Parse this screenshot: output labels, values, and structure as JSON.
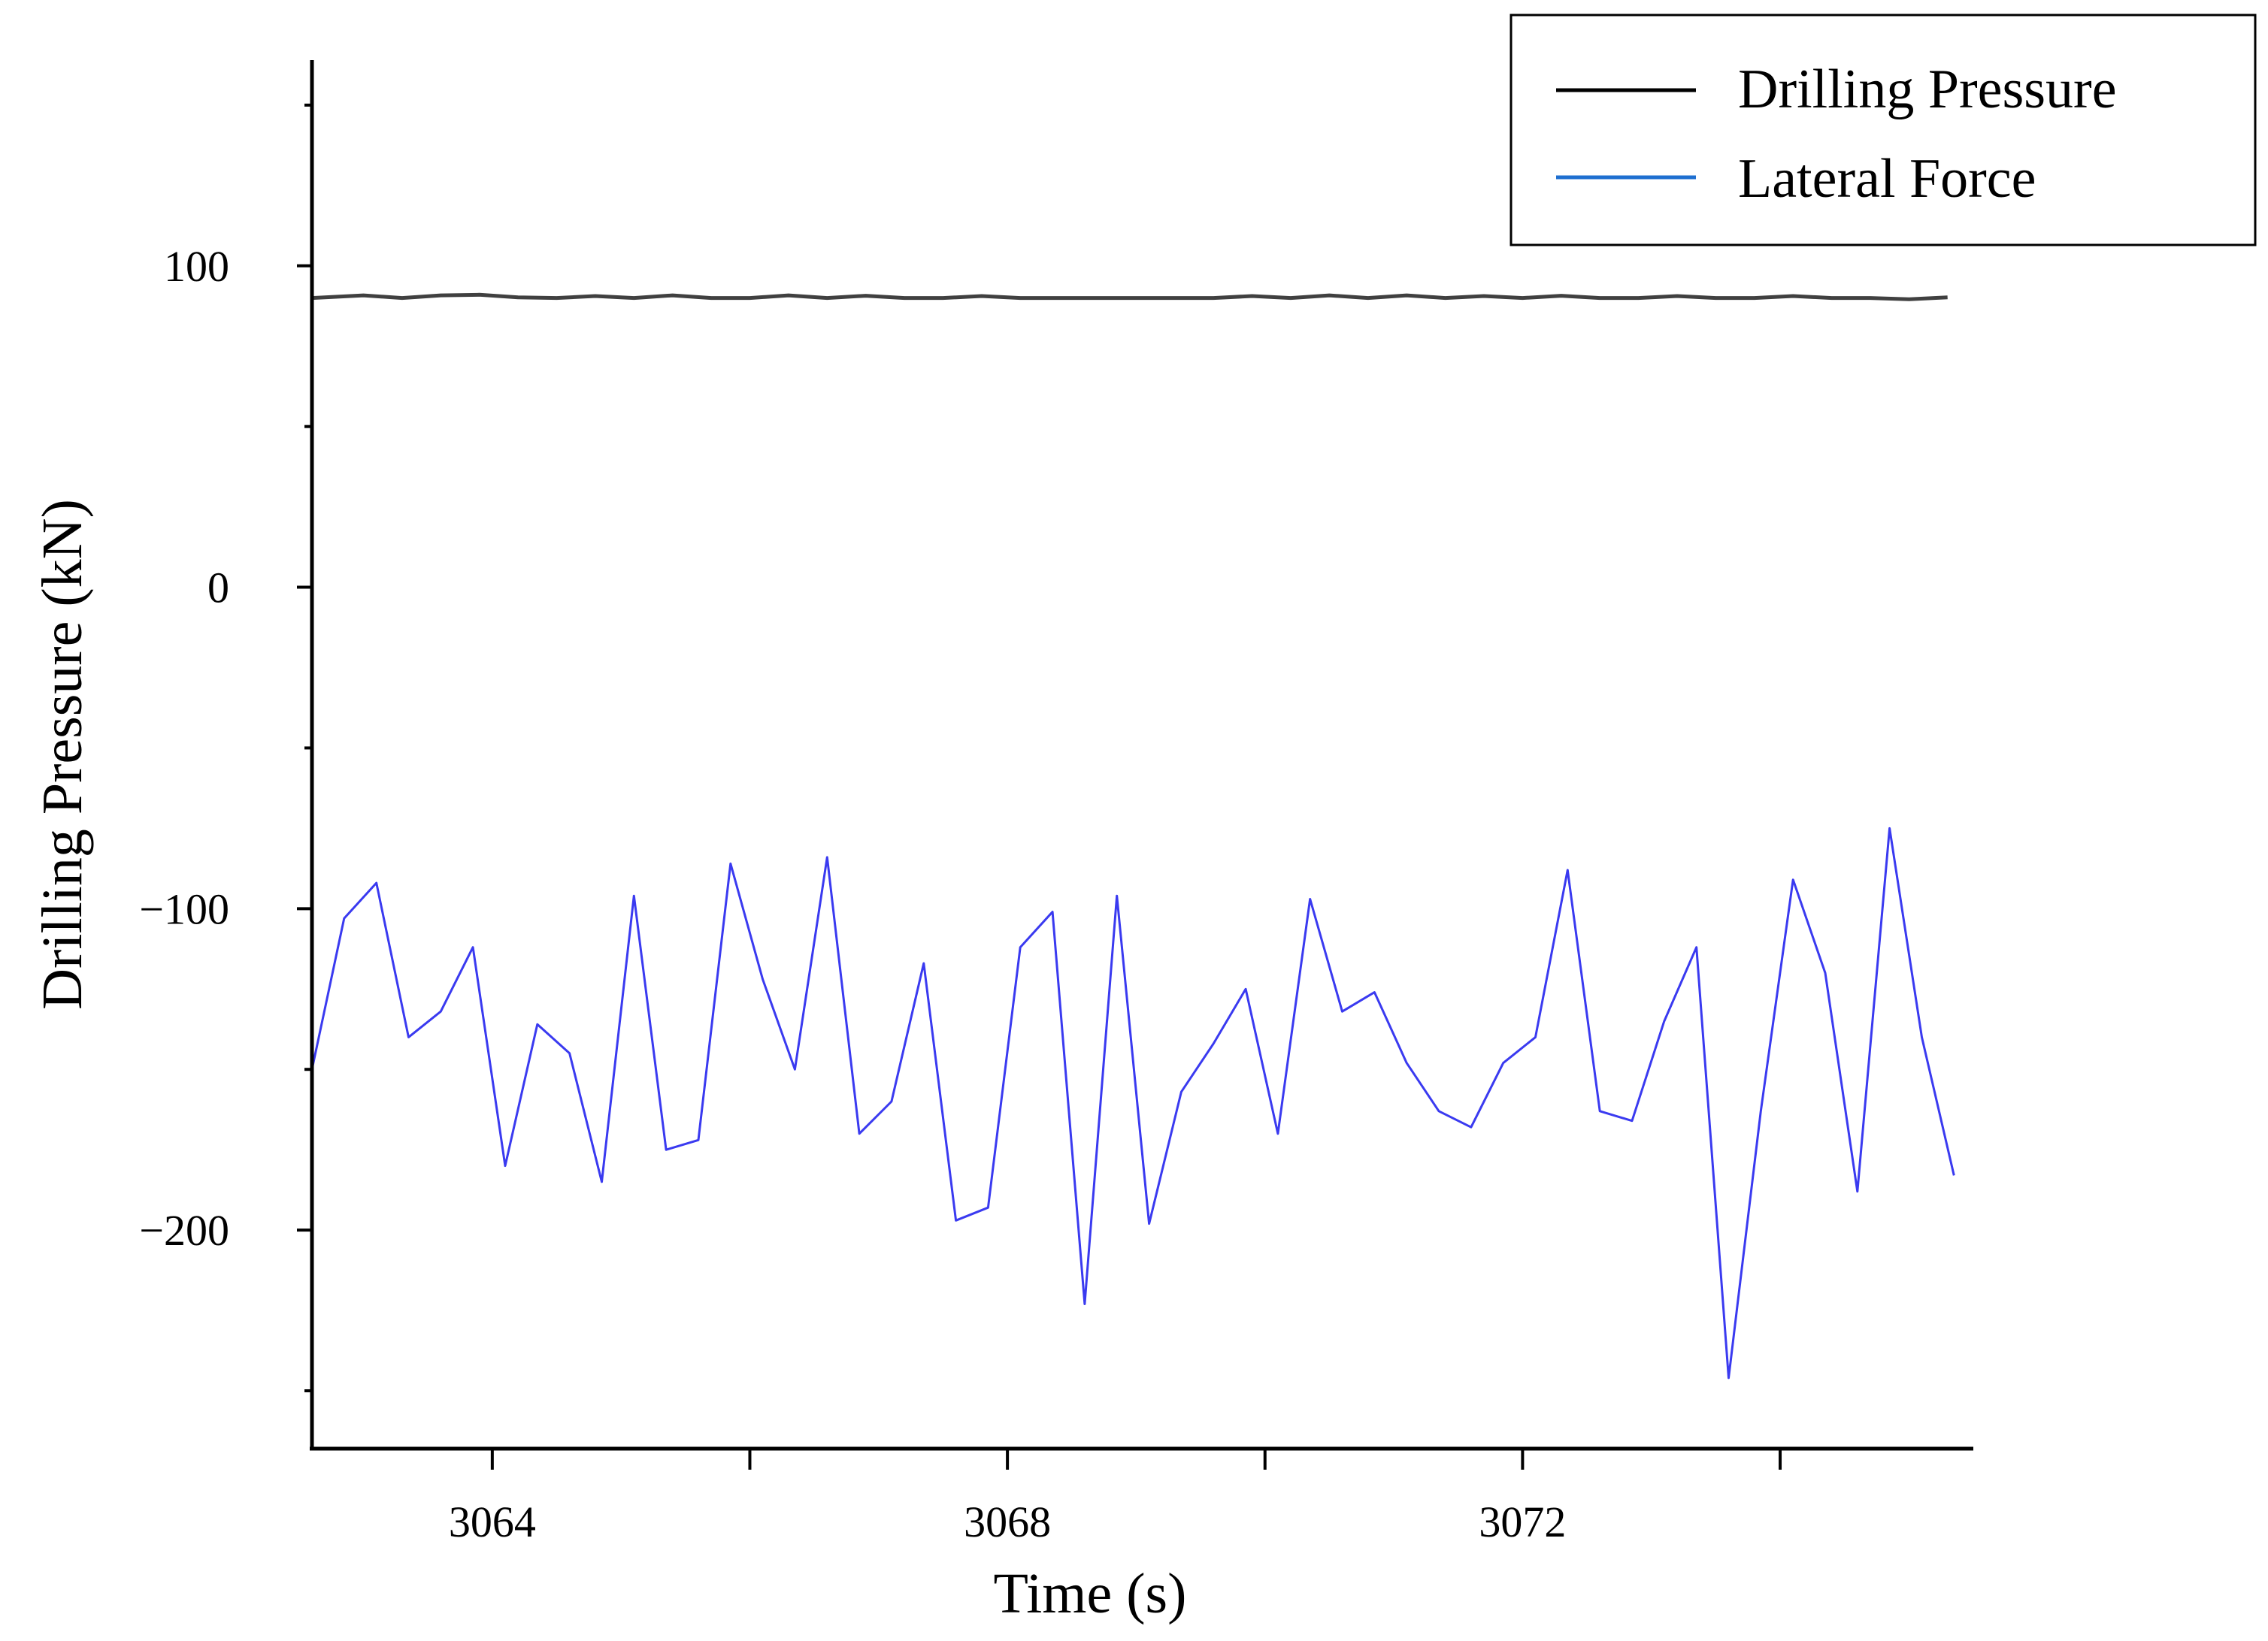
{
  "chart_data": {
    "type": "line",
    "xlabel": "Time (s)",
    "ylabel": "Drilling Pressure (kN)",
    "xlim": [
      3062.6,
      3075.5
    ],
    "ylim": [
      -268,
      164
    ],
    "x_ticks": [
      3064,
      3066,
      3068,
      3070,
      3072,
      3074
    ],
    "x_tick_labels": [
      "3064",
      "3068",
      "3072"
    ],
    "x_tick_label_values": [
      3064,
      3068,
      3072
    ],
    "y_ticks": [
      -250,
      -200,
      -150,
      -100,
      -50,
      0,
      50,
      100,
      150
    ],
    "y_tick_labels": [
      "100",
      "0",
      "−100",
      "−200"
    ],
    "y_tick_label_values": [
      100,
      0,
      -100,
      -200
    ],
    "grid": false,
    "legend": "top-right",
    "series": [
      {
        "name": "Drilling Pressure",
        "color": "#404040",
        "x": [
          3062.6,
          3063.0,
          3063.3,
          3063.6,
          3063.9,
          3064.2,
          3064.5,
          3064.8,
          3065.1,
          3065.4,
          3065.7,
          3066.0,
          3066.3,
          3066.6,
          3066.9,
          3067.2,
          3067.5,
          3067.8,
          3068.1,
          3068.4,
          3068.7,
          3069.0,
          3069.3,
          3069.6,
          3069.9,
          3070.2,
          3070.5,
          3070.8,
          3071.1,
          3071.4,
          3071.7,
          3072.0,
          3072.3,
          3072.6,
          3072.9,
          3073.2,
          3073.5,
          3073.8,
          3074.1,
          3074.4,
          3074.7,
          3075.0,
          3075.3
        ],
        "values": [
          90.0,
          90.8,
          90.0,
          90.8,
          91.0,
          90.2,
          90.0,
          90.6,
          90.0,
          90.8,
          90.0,
          90.0,
          90.8,
          90.0,
          90.7,
          90.0,
          90.0,
          90.6,
          90.0,
          90.0,
          90.0,
          90.0,
          90.0,
          90.0,
          90.6,
          90.0,
          90.8,
          90.0,
          90.8,
          90.0,
          90.6,
          90.0,
          90.7,
          90.0,
          90.0,
          90.6,
          90.0,
          90.0,
          90.6,
          90.0,
          90.0,
          89.6,
          90.2
        ]
      },
      {
        "name": "Lateral Force",
        "color": "#3a3af0",
        "x": [
          3062.6,
          3062.85,
          3063.1,
          3063.35,
          3063.6,
          3063.85,
          3064.1,
          3064.35,
          3064.6,
          3064.85,
          3065.1,
          3065.35,
          3065.6,
          3065.85,
          3066.1,
          3066.35,
          3066.6,
          3066.85,
          3067.1,
          3067.35,
          3067.6,
          3067.85,
          3068.1,
          3068.35,
          3068.6,
          3068.85,
          3069.1,
          3069.35,
          3069.6,
          3069.85,
          3070.1,
          3070.35,
          3070.6,
          3070.85,
          3071.1,
          3071.35,
          3071.6,
          3071.85,
          3072.1,
          3072.35,
          3072.6,
          3072.85,
          3073.1,
          3073.35,
          3073.6,
          3073.85,
          3074.1,
          3074.35,
          3074.6,
          3074.85,
          3075.1,
          3075.35
        ],
        "values": [
          -150,
          -103,
          -92,
          -140,
          -132,
          -112,
          -180,
          -136,
          -145,
          -185,
          -96,
          -175,
          -172,
          -86,
          -122,
          -150,
          -84,
          -170,
          -160,
          -117,
          -197,
          -193,
          -112,
          -101,
          -223,
          -96,
          -198,
          -157,
          -142,
          -125,
          -170,
          -97,
          -132,
          -126,
          -148,
          -163,
          -168,
          -148,
          -140,
          -88,
          -163,
          -166,
          -135,
          -112,
          -246,
          -163,
          -91,
          -120,
          -188,
          -75,
          -140,
          -183
        ]
      }
    ]
  }
}
